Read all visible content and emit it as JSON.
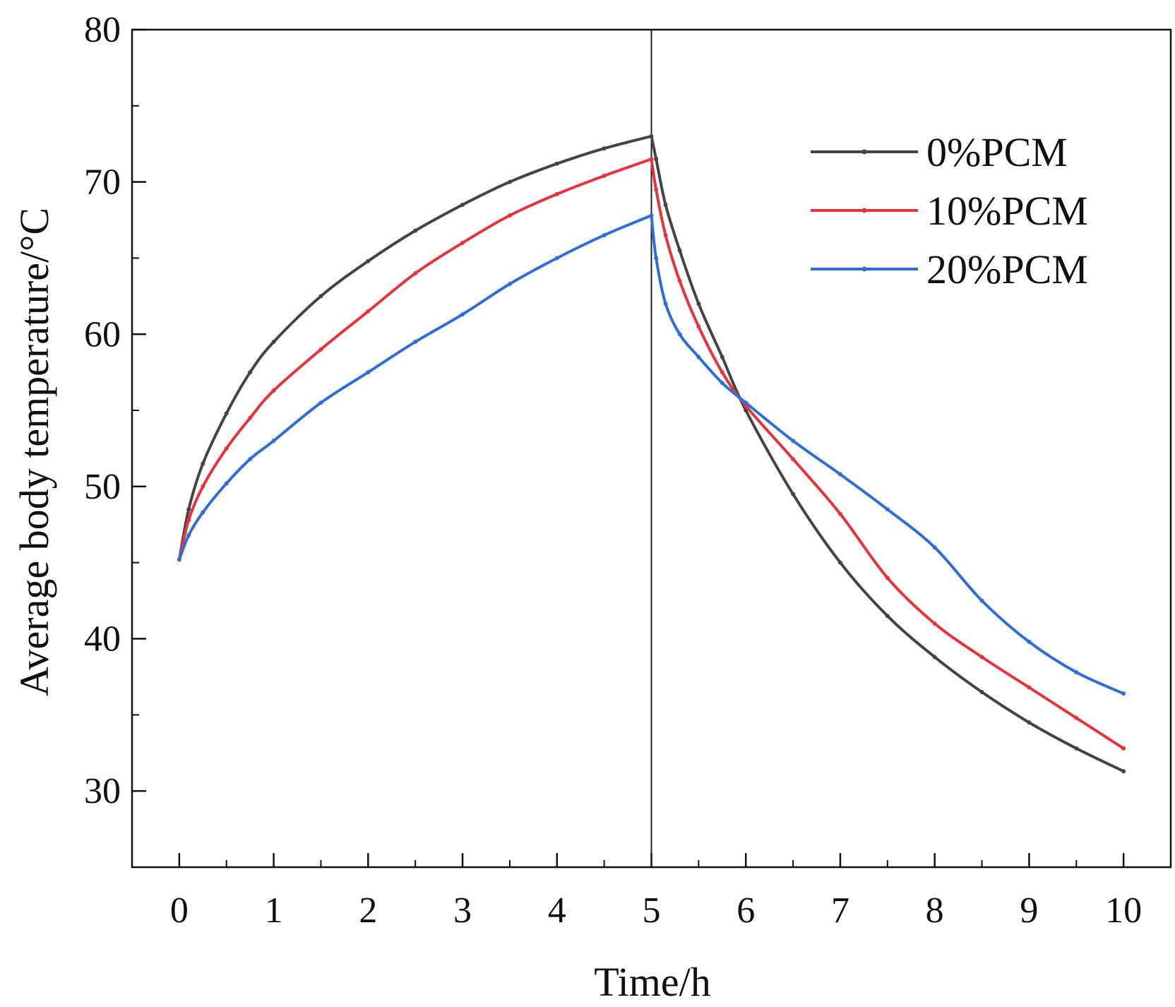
{
  "chart_data": {
    "type": "line",
    "title": "",
    "xlabel": "Time/h",
    "ylabel": "Average body temperature/°C",
    "xlim": [
      -0.5,
      10.5
    ],
    "ylim": [
      25,
      80
    ],
    "xticks": [
      0,
      1,
      2,
      3,
      4,
      5,
      6,
      7,
      8,
      9,
      10
    ],
    "yticks": [
      30,
      40,
      50,
      60,
      70,
      80
    ],
    "divider_x": 5,
    "grid": false,
    "legend_position": "top-right",
    "series": [
      {
        "name": "0%PCM",
        "color": "#444444",
        "x": [
          0,
          0.1,
          0.25,
          0.5,
          0.75,
          1,
          1.5,
          2,
          2.5,
          3,
          3.5,
          4,
          4.5,
          5,
          5.05,
          5.15,
          5.3,
          5.5,
          5.75,
          6,
          6.5,
          7,
          7.5,
          8,
          8.5,
          9,
          9.5,
          10
        ],
        "values": [
          45.2,
          48.5,
          51.5,
          54.8,
          57.5,
          59.5,
          62.5,
          64.8,
          66.8,
          68.5,
          70.0,
          71.2,
          72.2,
          73.0,
          71.5,
          68.5,
          65.5,
          62.0,
          58.5,
          55.0,
          49.5,
          45.0,
          41.5,
          38.8,
          36.5,
          34.5,
          32.8,
          31.3
        ]
      },
      {
        "name": "10%PCM",
        "color": "#e8323c",
        "x": [
          0,
          0.1,
          0.25,
          0.5,
          0.75,
          1,
          1.5,
          2,
          2.5,
          3,
          3.5,
          4,
          4.5,
          5,
          5.05,
          5.15,
          5.3,
          5.5,
          5.75,
          6,
          6.5,
          7,
          7.5,
          8,
          8.5,
          9,
          9.5,
          10
        ],
        "values": [
          45.2,
          47.8,
          50.0,
          52.5,
          54.5,
          56.3,
          59.0,
          61.5,
          64.0,
          66.0,
          67.8,
          69.2,
          70.4,
          71.5,
          69.5,
          66.5,
          63.5,
          60.5,
          57.5,
          55.3,
          51.8,
          48.2,
          44.0,
          41.0,
          38.8,
          36.8,
          34.8,
          32.8
        ]
      },
      {
        "name": "20%PCM",
        "color": "#2e6ed6",
        "x": [
          0,
          0.1,
          0.25,
          0.5,
          0.75,
          1,
          1.5,
          2,
          2.5,
          3,
          3.5,
          4,
          4.5,
          5,
          5.05,
          5.15,
          5.3,
          5.5,
          5.75,
          6,
          6.5,
          7,
          7.5,
          8,
          8.5,
          9,
          9.5,
          10
        ],
        "values": [
          45.2,
          46.8,
          48.3,
          50.2,
          51.8,
          53.0,
          55.5,
          57.5,
          59.5,
          61.3,
          63.3,
          65.0,
          66.5,
          67.8,
          65.0,
          62.0,
          60.0,
          58.5,
          56.8,
          55.5,
          53.0,
          50.8,
          48.5,
          46.0,
          42.5,
          39.8,
          37.8,
          36.4
        ]
      }
    ]
  }
}
